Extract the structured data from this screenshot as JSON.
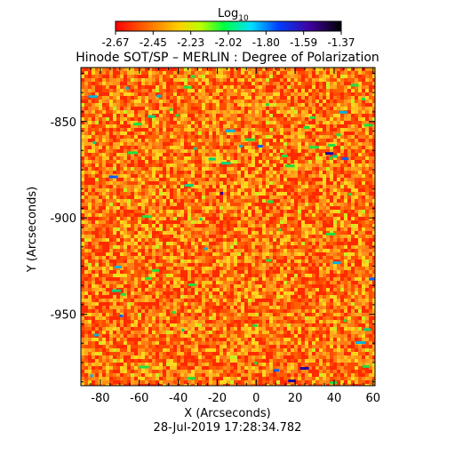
{
  "chart_data": {
    "type": "heatmap",
    "title": "Hinode SOT/SP – MERLIN : Degree of Polarization",
    "xlabel": "X (Arcseconds)",
    "ylabel": "Y (Arcseconds)",
    "timestamp": "28-Jul-2019 17:28:34.782",
    "colorbar": {
      "label_main": "Log",
      "label_sub": "10",
      "ticks": [
        "-2.67",
        "-2.45",
        "-2.23",
        "-2.02",
        "-1.80",
        "-1.59",
        "-1.37"
      ],
      "range": [
        -2.67,
        -1.37
      ]
    },
    "xlim": [
      -90,
      61
    ],
    "ylim": [
      -987,
      -822
    ],
    "xticks": [
      -80,
      -60,
      -40,
      -20,
      0,
      20,
      40,
      60
    ],
    "yticks": [
      -850,
      -900,
      -950
    ],
    "xtick_labels": [
      "-80",
      "-60",
      "-40",
      "-20",
      "0",
      "20",
      "40",
      "60"
    ],
    "ytick_labels": [
      "-850",
      "-900",
      "-950"
    ],
    "typical_value": -2.6,
    "color_scale": [
      "#ff0000",
      "#ff6a00",
      "#ffd000",
      "#b8ff00",
      "#00ff40",
      "#00e0ff",
      "#0040ff",
      "#4000a0",
      "#000000"
    ]
  }
}
